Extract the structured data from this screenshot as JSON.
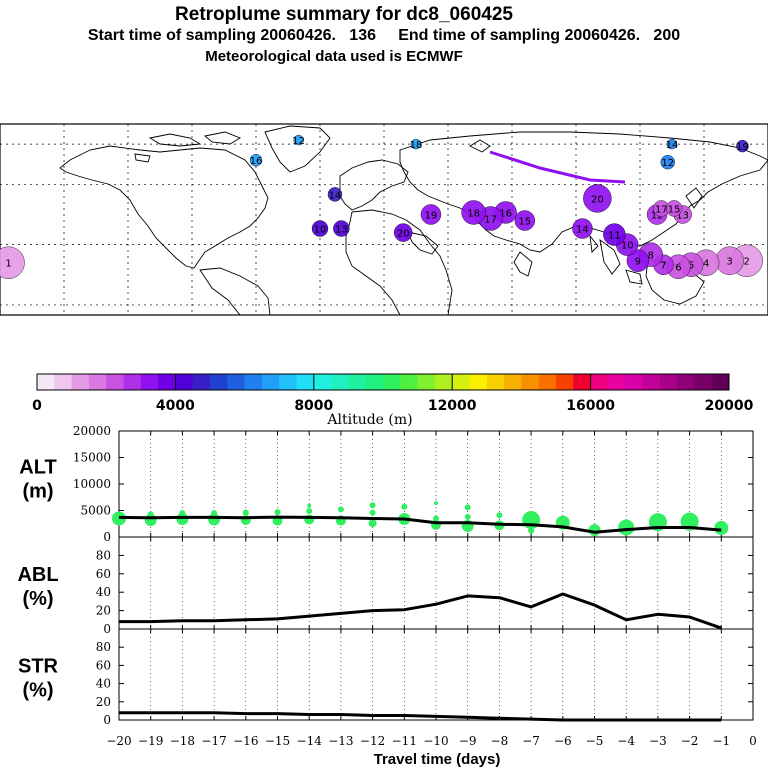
{
  "header": {
    "title": "Retroplume summary for dc8_060425",
    "line2": "Start time of sampling 20060426.   136     End time of sampling 20060426.   200",
    "line3": "Meteorological data used is ECMWF"
  },
  "colorbar": {
    "title": "Altitude (m)",
    "ticks": [
      "0",
      "4000",
      "8000",
      "12000",
      "16000",
      "20000"
    ],
    "colors": [
      "#f5e8f5",
      "#eec6ee",
      "#e49be6",
      "#d978e0",
      "#c953e0",
      "#b030e8",
      "#9010f0",
      "#7000e8",
      "#5000d8",
      "#3820c8",
      "#2040d0",
      "#2060e0",
      "#2080f0",
      "#20a0f8",
      "#20c0f8",
      "#20e0f8",
      "#20f0e0",
      "#20f0c0",
      "#20f0a0",
      "#20f080",
      "#30f060",
      "#50f040",
      "#80f030",
      "#b0f020",
      "#d8f010",
      "#f8f000",
      "#f8d000",
      "#f8b000",
      "#f89000",
      "#f87000",
      "#f84000",
      "#f00030",
      "#f00080",
      "#e800a0",
      "#d800a8",
      "#c00098",
      "#a80088",
      "#900078",
      "#780068",
      "#600058"
    ]
  },
  "map": {
    "markers": [
      {
        "label": "1",
        "lon": -176,
        "lat": 21,
        "size": 16,
        "color": "#e49be6"
      },
      {
        "label": "2",
        "lon": 170,
        "lat": 22,
        "size": 16,
        "color": "#e49be6"
      },
      {
        "label": "3",
        "lon": 162,
        "lat": 22,
        "size": 14,
        "color": "#d978e0"
      },
      {
        "label": "4",
        "lon": 151,
        "lat": 21,
        "size": 13,
        "color": "#d978e0"
      },
      {
        "label": "5",
        "lon": 144,
        "lat": 20,
        "size": 12,
        "color": "#c953e0"
      },
      {
        "label": "6",
        "lon": 138,
        "lat": 19,
        "size": 12,
        "color": "#c953e0"
      },
      {
        "label": "7",
        "lon": 131,
        "lat": 20,
        "size": 10,
        "color": "#b030e8"
      },
      {
        "label": "8",
        "lon": 125,
        "lat": 25,
        "size": 12,
        "color": "#b030e8"
      },
      {
        "label": "9",
        "lon": 119,
        "lat": 22,
        "size": 11,
        "color": "#9010f0"
      },
      {
        "label": "10",
        "lon": 114,
        "lat": 30,
        "size": 11,
        "color": "#9010f0"
      },
      {
        "label": "11",
        "lon": 108,
        "lat": 35,
        "size": 11,
        "color": "#7000e8"
      },
      {
        "label": "12",
        "lon": 128,
        "lat": 45,
        "size": 10,
        "color": "#b030e8"
      },
      {
        "label": "13",
        "lon": 140,
        "lat": 45,
        "size": 9,
        "color": "#c953e0"
      },
      {
        "label": "14",
        "lon": 93,
        "lat": 38,
        "size": 10,
        "color": "#9010f0"
      },
      {
        "label": "15",
        "lon": 66,
        "lat": 42,
        "size": 10,
        "color": "#9010f0"
      },
      {
        "label": "16",
        "lon": 57,
        "lat": 46,
        "size": 11,
        "color": "#9010f0"
      },
      {
        "label": "17",
        "lon": 50,
        "lat": 43,
        "size": 12,
        "color": "#9010f0"
      },
      {
        "label": "18",
        "lon": 42,
        "lat": 46,
        "size": 12,
        "color": "#9010f0"
      },
      {
        "label": "19",
        "lon": 22,
        "lat": 45,
        "size": 10,
        "color": "#9010f0"
      },
      {
        "label": "20",
        "lon": 9,
        "lat": 36,
        "size": 9,
        "color": "#7000e8"
      },
      {
        "label": "20",
        "lon": 100,
        "lat": 53,
        "size": 14,
        "color": "#9010f0"
      },
      {
        "label": "17",
        "lon": 130,
        "lat": 48,
        "size": 8,
        "color": "#c953e0"
      },
      {
        "label": "15",
        "lon": 136,
        "lat": 48,
        "size": 8,
        "color": "#c953e0"
      },
      {
        "label": "10",
        "lon": -30,
        "lat": 38,
        "size": 8,
        "color": "#5000d8"
      },
      {
        "label": "13",
        "lon": -20,
        "lat": 38,
        "size": 8,
        "color": "#5000d8"
      },
      {
        "label": "14",
        "lon": -23,
        "lat": 55,
        "size": 7,
        "color": "#3820c8"
      },
      {
        "label": "16",
        "lon": -60,
        "lat": 72,
        "size": 6,
        "color": "#20a0f8"
      },
      {
        "label": "12",
        "lon": -40,
        "lat": 82,
        "size": 5,
        "color": "#20a0f8"
      },
      {
        "label": "18",
        "lon": 15,
        "lat": 80,
        "size": 5,
        "color": "#20a0f8"
      },
      {
        "label": "14",
        "lon": 135,
        "lat": 80,
        "size": 5,
        "color": "#2080f0"
      },
      {
        "label": "12",
        "lon": 133,
        "lat": 71,
        "size": 7,
        "color": "#2080f0"
      },
      {
        "label": "19",
        "lon": 168,
        "lat": 79,
        "size": 6,
        "color": "#3820c8"
      }
    ]
  },
  "panels": {
    "x_label": "Travel time (days)",
    "x_ticks": [
      "−20",
      "−19",
      "−18",
      "−17",
      "−16",
      "−15",
      "−14",
      "−13",
      "−12",
      "−11",
      "−10",
      "−9",
      "−8",
      "−7",
      "−6",
      "−5",
      "−4",
      "−3",
      "−2",
      "−1",
      "0"
    ]
  },
  "chart_data": [
    {
      "type": "line",
      "title": "ALT (m)",
      "ylabel_line1": "ALT",
      "ylabel_line2": "(m)",
      "ylim": [
        0,
        20000
      ],
      "yticks": [
        "0",
        "5000",
        "10000",
        "15000",
        "20000"
      ],
      "x": [
        -20,
        -19,
        -18,
        -17,
        -16,
        -15,
        -14,
        -13,
        -12,
        -11,
        -10,
        -9,
        -8,
        -7,
        -6,
        -5,
        -4,
        -3,
        -2,
        -1
      ],
      "values": [
        3700,
        3650,
        3700,
        3700,
        3650,
        3750,
        3700,
        3650,
        3500,
        3400,
        2700,
        2700,
        2400,
        2300,
        1900,
        900,
        1400,
        1800,
        1800,
        1300
      ],
      "dots": [
        {
          "x": -20,
          "y": 3500,
          "r": 7
        },
        {
          "x": -19,
          "y": 3200,
          "r": 6
        },
        {
          "x": -19,
          "y": 4300,
          "r": 3
        },
        {
          "x": -18,
          "y": 3400,
          "r": 6
        },
        {
          "x": -18,
          "y": 4500,
          "r": 3
        },
        {
          "x": -17,
          "y": 3300,
          "r": 6
        },
        {
          "x": -17,
          "y": 4500,
          "r": 3
        },
        {
          "x": -16,
          "y": 3200,
          "r": 5
        },
        {
          "x": -16,
          "y": 4600,
          "r": 3
        },
        {
          "x": -15,
          "y": 3100,
          "r": 5
        },
        {
          "x": -15,
          "y": 4700,
          "r": 3
        },
        {
          "x": -14,
          "y": 3300,
          "r": 5
        },
        {
          "x": -14,
          "y": 4900,
          "r": 3
        },
        {
          "x": -14,
          "y": 5900,
          "r": 2
        },
        {
          "x": -13,
          "y": 3100,
          "r": 5
        },
        {
          "x": -13,
          "y": 5200,
          "r": 3
        },
        {
          "x": -12,
          "y": 2600,
          "r": 4
        },
        {
          "x": -12,
          "y": 4600,
          "r": 3
        },
        {
          "x": -12,
          "y": 6000,
          "r": 3
        },
        {
          "x": -11,
          "y": 3400,
          "r": 6
        },
        {
          "x": -11,
          "y": 5700,
          "r": 3
        },
        {
          "x": -10,
          "y": 2300,
          "r": 5
        },
        {
          "x": -10,
          "y": 3500,
          "r": 3
        },
        {
          "x": -10,
          "y": 6400,
          "r": 2
        },
        {
          "x": -9,
          "y": 2100,
          "r": 6
        },
        {
          "x": -9,
          "y": 3800,
          "r": 3
        },
        {
          "x": -9,
          "y": 5600,
          "r": 3
        },
        {
          "x": -8,
          "y": 2200,
          "r": 5
        },
        {
          "x": -8,
          "y": 4100,
          "r": 3
        },
        {
          "x": -7,
          "y": 3200,
          "r": 9
        },
        {
          "x": -7,
          "y": 1200,
          "r": 3
        },
        {
          "x": -6,
          "y": 2700,
          "r": 7
        },
        {
          "x": -5,
          "y": 1300,
          "r": 6
        },
        {
          "x": -4,
          "y": 1800,
          "r": 8
        },
        {
          "x": -3,
          "y": 2800,
          "r": 9
        },
        {
          "x": -2,
          "y": 2900,
          "r": 9
        },
        {
          "x": -1,
          "y": 1700,
          "r": 7
        }
      ]
    },
    {
      "type": "line",
      "title": "ABL (%)",
      "ylabel_line1": "ABL",
      "ylabel_line2": "(%)",
      "ylim": [
        0,
        100
      ],
      "yticks": [
        "0",
        "20",
        "40",
        "60",
        "80"
      ],
      "x": [
        -20,
        -19,
        -18,
        -17,
        -16,
        -15,
        -14,
        -13,
        -12,
        -11,
        -10,
        -9,
        -8,
        -7,
        -6,
        -5,
        -4,
        -3,
        -2,
        -1
      ],
      "values": [
        8,
        8,
        9,
        9,
        10,
        11,
        14,
        17,
        20,
        21,
        27,
        36,
        34,
        24,
        38,
        26,
        10,
        16,
        13,
        1
      ]
    },
    {
      "type": "line",
      "title": "STR (%)",
      "ylabel_line1": "STR",
      "ylabel_line2": "(%)",
      "ylim": [
        0,
        100
      ],
      "yticks": [
        "0",
        "20",
        "40",
        "60",
        "80"
      ],
      "x": [
        -20,
        -19,
        -18,
        -17,
        -16,
        -15,
        -14,
        -13,
        -12,
        -11,
        -10,
        -9,
        -8,
        -7,
        -6,
        -5,
        -4,
        -3,
        -2,
        -1
      ],
      "values": [
        8,
        8,
        8,
        8,
        7,
        7,
        6,
        6,
        5,
        5,
        4,
        3,
        2,
        1,
        0,
        0,
        0,
        0,
        0,
        0
      ]
    }
  ]
}
